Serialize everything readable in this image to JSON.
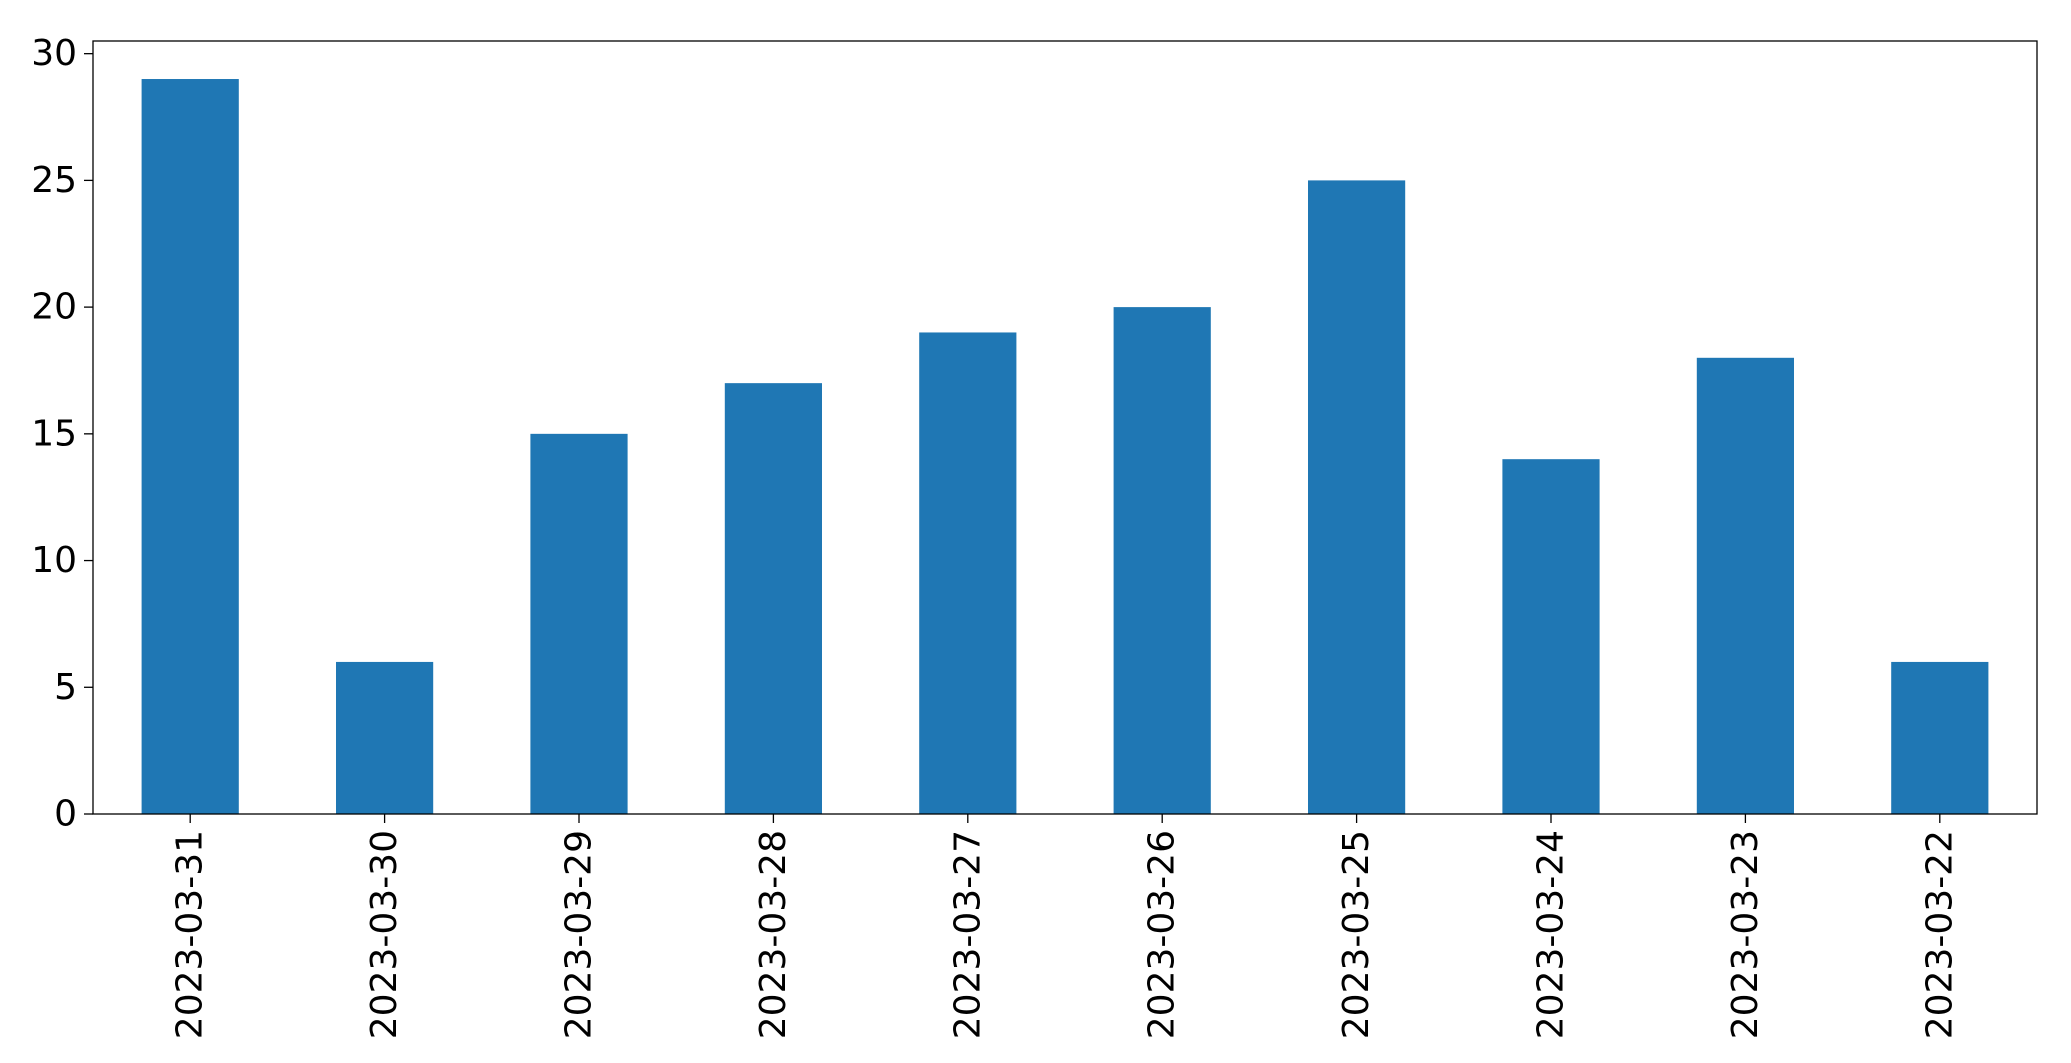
{
  "chart_data": {
    "type": "bar",
    "title": "",
    "xlabel": "",
    "ylabel": "",
    "categories": [
      "2023-03-31",
      "2023-03-30",
      "2023-03-29",
      "2023-03-28",
      "2023-03-27",
      "2023-03-26",
      "2023-03-25",
      "2023-03-24",
      "2023-03-23",
      "2023-03-22"
    ],
    "values": [
      29,
      6,
      15,
      17,
      19,
      20,
      25,
      14,
      18,
      6
    ],
    "ylim": [
      0,
      30.5
    ],
    "yticks": [
      0,
      5,
      10,
      15,
      20,
      25,
      30
    ],
    "x_tick_rotation": "vertical",
    "grid": false,
    "legend": "none",
    "bar_color": "#1f77b4"
  }
}
